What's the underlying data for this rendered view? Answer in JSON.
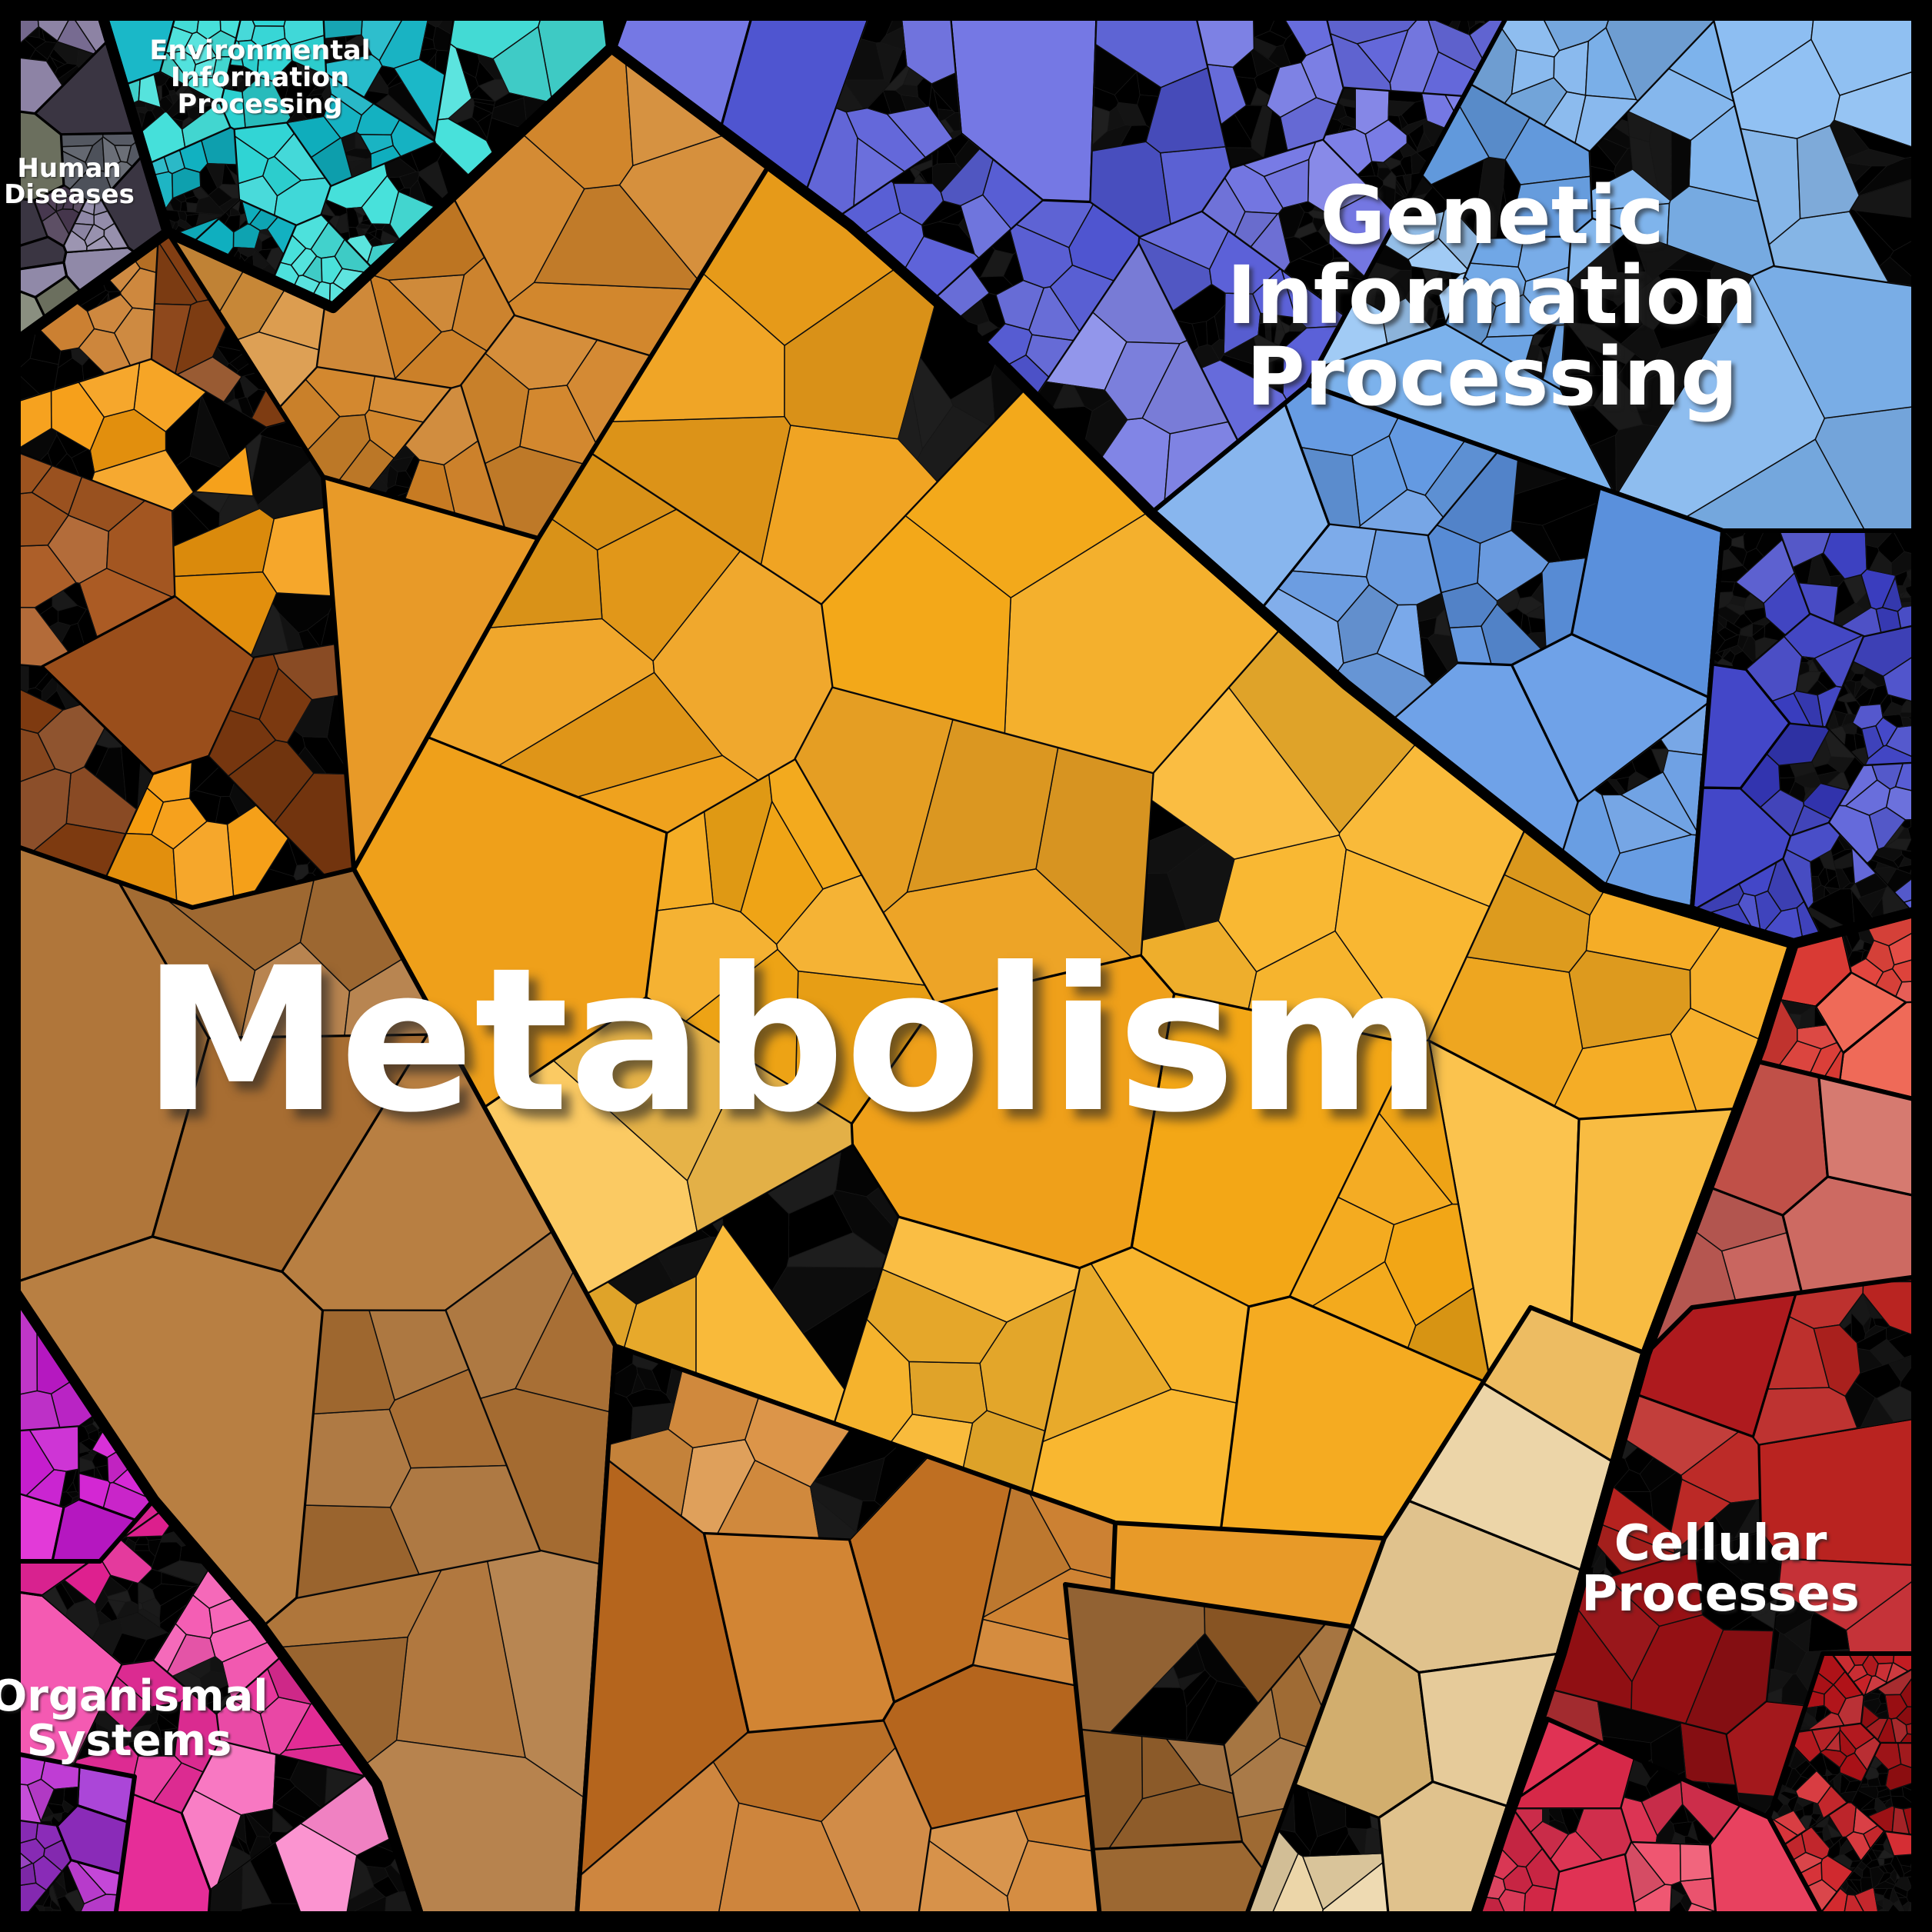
{
  "chart_data": {
    "type": "voronoi-treemap",
    "title": "",
    "description_visible_text_only": "KEGG-style hierarchical Voronoi treemap; only category labels are rendered, no numeric values are shown",
    "categories": [
      {
        "label": "Metabolism",
        "color": "#f5ab21"
      },
      {
        "label": "Genetic Information Processing",
        "color": "#6fa2e8"
      },
      {
        "label": "Environmental Information Processing",
        "color": "#16c2cc"
      },
      {
        "label": "Cellular Processes",
        "color": "#ae1a1e"
      },
      {
        "label": "Organismal Systems",
        "color": "#ee3fa4"
      },
      {
        "label": "Human Diseases",
        "color": "#5d6170"
      }
    ],
    "layout_hints": {
      "hierarchy_levels": 3,
      "cell_border_color": "#000000",
      "frame_color": "#000000",
      "label_color": "#ffffff",
      "legend": "none",
      "axes": "none"
    }
  },
  "labels": {
    "metabolism": {
      "text": "Metabolism"
    },
    "gip": {
      "lines": [
        "Genetic",
        "Information",
        "Processing"
      ]
    },
    "eip": {
      "lines": [
        "Environmental",
        "Information",
        "Processing"
      ]
    },
    "hd": {
      "lines": [
        "Human",
        "Diseases"
      ]
    },
    "cp": {
      "lines": [
        "Cellular",
        "Processes"
      ]
    },
    "os": {
      "lines": [
        "Organismal",
        "Systems"
      ]
    }
  },
  "colors": {
    "metabolism": "#f5ab21",
    "genetic_information_processing": "#6fa2e8",
    "environmental_information_processing": "#16c2cc",
    "cellular_processes": "#ae1a1e",
    "organismal_systems": "#ee3fa4",
    "human_diseases": "#5d6170",
    "border": "#000000",
    "label_text": "#ffffff"
  }
}
